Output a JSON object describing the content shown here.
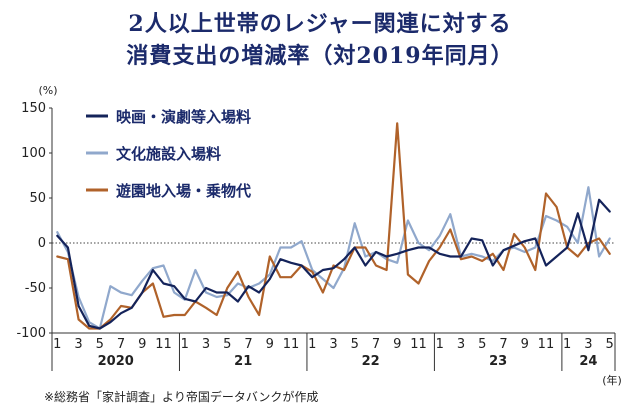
{
  "title_line1": "2人以上世帯のレジャー関連に対する",
  "title_line2": "消費支出の増減率（対2019年同月）",
  "source_note": "※総務省「家計調査」より帝国データバンクが作成",
  "chart_data": {
    "type": "line",
    "yunit": "(%)",
    "xunit": "(年)",
    "ylim": [
      -100,
      150
    ],
    "yticks": [
      150,
      100,
      50,
      0,
      -50,
      -100
    ],
    "month_tick_labels": [
      "1",
      "3",
      "5",
      "7",
      "9",
      "11",
      "1",
      "3",
      "5",
      "7",
      "9",
      "11",
      "1",
      "3",
      "5",
      "7",
      "9",
      "11",
      "1",
      "3",
      "5",
      "7",
      "9",
      "11",
      "1",
      "3",
      "5"
    ],
    "year_labels": [
      "2020",
      "21",
      "22",
      "23",
      "24"
    ],
    "x_months": [
      "2020-01",
      "2020-02",
      "2020-03",
      "2020-04",
      "2020-05",
      "2020-06",
      "2020-07",
      "2020-08",
      "2020-09",
      "2020-10",
      "2020-11",
      "2020-12",
      "2021-01",
      "2021-02",
      "2021-03",
      "2021-04",
      "2021-05",
      "2021-06",
      "2021-07",
      "2021-08",
      "2021-09",
      "2021-10",
      "2021-11",
      "2021-12",
      "2022-01",
      "2022-02",
      "2022-03",
      "2022-04",
      "2022-05",
      "2022-06",
      "2022-07",
      "2022-08",
      "2022-09",
      "2022-10",
      "2022-11",
      "2022-12",
      "2023-01",
      "2023-02",
      "2023-03",
      "2023-04",
      "2023-05",
      "2023-06",
      "2023-07",
      "2023-08",
      "2023-09",
      "2023-10",
      "2023-11",
      "2023-12",
      "2024-01",
      "2024-02",
      "2024-03",
      "2024-04",
      "2024-05"
    ],
    "series": [
      {
        "name": "映画・演劇等入場料",
        "color": "#14235a",
        "values": [
          8,
          -5,
          -70,
          -92,
          -95,
          -88,
          -78,
          -72,
          -55,
          -30,
          -45,
          -48,
          -62,
          -65,
          -50,
          -55,
          -55,
          -65,
          -48,
          -55,
          -40,
          -18,
          -22,
          -25,
          -38,
          -30,
          -28,
          -18,
          -5,
          -25,
          -10,
          -15,
          -12,
          -8,
          -5,
          -5,
          -12,
          -15,
          -15,
          5,
          3,
          -25,
          -8,
          -3,
          2,
          5,
          -25,
          -15,
          -5,
          33,
          -8,
          48,
          35
        ]
      },
      {
        "name": "文化施設入場料",
        "color": "#90a8cc",
        "values": [
          12,
          -10,
          -60,
          -88,
          -95,
          -48,
          -55,
          -58,
          -42,
          -28,
          -25,
          -55,
          -63,
          -30,
          -55,
          -60,
          -58,
          -45,
          -50,
          -45,
          -35,
          -5,
          -5,
          2,
          -30,
          -40,
          -50,
          -28,
          22,
          -15,
          -10,
          -18,
          -22,
          25,
          0,
          -8,
          8,
          32,
          -15,
          -12,
          -15,
          -20,
          -8,
          -5,
          -10,
          -5,
          30,
          25,
          18,
          0,
          62,
          -15,
          5
        ]
      },
      {
        "name": "遊園地入場・乗物代",
        "color": "#b0622a",
        "values": [
          -15,
          -18,
          -85,
          -95,
          -95,
          -85,
          -70,
          -72,
          -55,
          -45,
          -82,
          -80,
          -80,
          -65,
          -72,
          -80,
          -50,
          -32,
          -60,
          -80,
          -15,
          -38,
          -38,
          -25,
          -32,
          -55,
          -25,
          -30,
          -5,
          -5,
          -25,
          -30,
          133,
          -35,
          -45,
          -20,
          -5,
          15,
          -18,
          -15,
          -20,
          -12,
          -30,
          10,
          -5,
          -30,
          55,
          40,
          -5,
          -15,
          0,
          5,
          -12
        ]
      }
    ]
  }
}
